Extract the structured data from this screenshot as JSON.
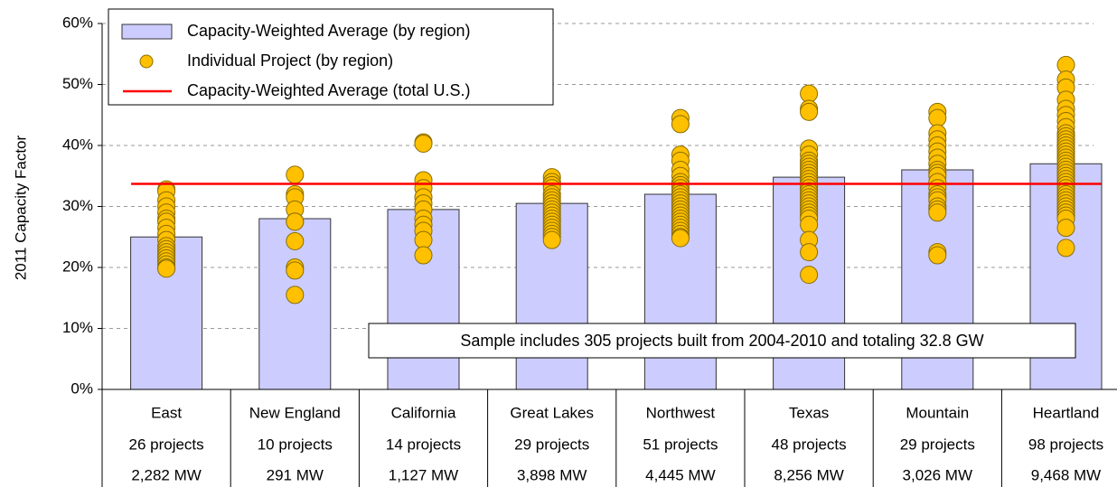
{
  "chart_data": {
    "type": "bar_scatter",
    "ylabel": "2011 Capacity Factor",
    "annotation": "Sample includes 305 projects built from 2004-2010 and totaling 32.8 GW",
    "categories": [
      "East",
      "New England",
      "California",
      "Great Lakes",
      "Northwest",
      "Texas",
      "Mountain",
      "Heartland"
    ],
    "projects": [
      "26 projects",
      "10 projects",
      "14 projects",
      "29 projects",
      "51 projects",
      "48 projects",
      "29 projects",
      "98 projects"
    ],
    "capacity": [
      "2,282 MW",
      "291 MW",
      "1,127 MW",
      "3,898 MW",
      "4,445 MW",
      "8,256 MW",
      "3,026 MW",
      "9,468 MW"
    ],
    "ylim": [
      0,
      60
    ],
    "yticks": [
      {
        "value": 0,
        "label": "0%"
      },
      {
        "value": 10,
        "label": "10%"
      },
      {
        "value": 20,
        "label": "20%"
      },
      {
        "value": 30,
        "label": "30%"
      },
      {
        "value": 40,
        "label": "40%"
      },
      {
        "value": 50,
        "label": "50%"
      },
      {
        "value": 60,
        "label": "60%"
      }
    ],
    "grid": true,
    "legend": "top-left",
    "series": [
      {
        "name": "Capacity-Weighted Average (by region)",
        "type": "bar",
        "color": "#ccccff",
        "values": [
          25,
          28,
          29.5,
          30.5,
          32,
          34.8,
          36,
          37
        ]
      },
      {
        "name": "Individual Project (by region)",
        "type": "scatter",
        "color": "#ffc000",
        "values": [
          [
            32.8,
            32.5,
            31,
            30,
            29,
            28,
            27.5,
            26.5,
            25.5,
            24.5,
            23.5,
            23,
            22.5,
            22,
            21.5,
            21,
            20.5,
            20,
            19.8
          ],
          [
            35.2,
            32,
            31.5,
            29.5,
            27.5,
            27.5,
            24.3,
            20,
            19.5,
            15.5
          ],
          [
            40.5,
            40.3,
            34.3,
            33,
            31.5,
            30.5,
            29.5,
            28,
            27,
            26,
            24.5,
            22
          ],
          [
            34.8,
            34,
            33.5,
            33,
            32,
            31.5,
            31,
            30.5,
            30,
            29.5,
            29,
            28.5,
            28,
            27.5,
            27,
            26.5,
            26,
            25.5,
            25,
            24.5
          ],
          [
            44.5,
            43.5,
            38.5,
            37.5,
            36,
            35,
            34,
            33.5,
            33,
            32.5,
            32,
            31.5,
            31,
            30.5,
            30,
            29.5,
            29,
            28.5,
            28,
            27.5,
            27,
            26.5,
            26,
            25.5,
            25,
            24.8
          ],
          [
            48.5,
            46,
            45.5,
            39.5,
            38.5,
            37.5,
            37,
            36.5,
            36,
            35.5,
            35,
            34.5,
            34,
            33.5,
            33,
            32.5,
            32,
            31.5,
            31,
            30.5,
            30,
            29.5,
            29,
            28.5,
            28,
            27,
            24.5,
            22.5,
            18.8
          ],
          [
            45.5,
            44.5,
            42,
            41,
            40,
            39,
            38,
            37,
            36,
            35.5,
            35,
            34,
            33,
            32,
            31.5,
            31,
            30,
            29.5,
            29,
            22.5,
            22
          ],
          [
            53.2,
            50.8,
            49.5,
            47.5,
            46,
            45,
            44,
            43,
            42,
            41.5,
            41,
            40.5,
            40,
            39.5,
            39,
            38.5,
            38,
            37.5,
            37,
            36.5,
            36,
            35.5,
            35,
            34.5,
            34,
            33.5,
            33,
            32.5,
            32,
            31.5,
            31,
            30.5,
            30,
            29.5,
            29,
            28.5,
            28,
            26.5,
            23.2
          ]
        ]
      },
      {
        "name": "Capacity-Weighted Average (total U.S.)",
        "type": "hline",
        "color": "#ff0000",
        "value": 33.7
      }
    ]
  }
}
